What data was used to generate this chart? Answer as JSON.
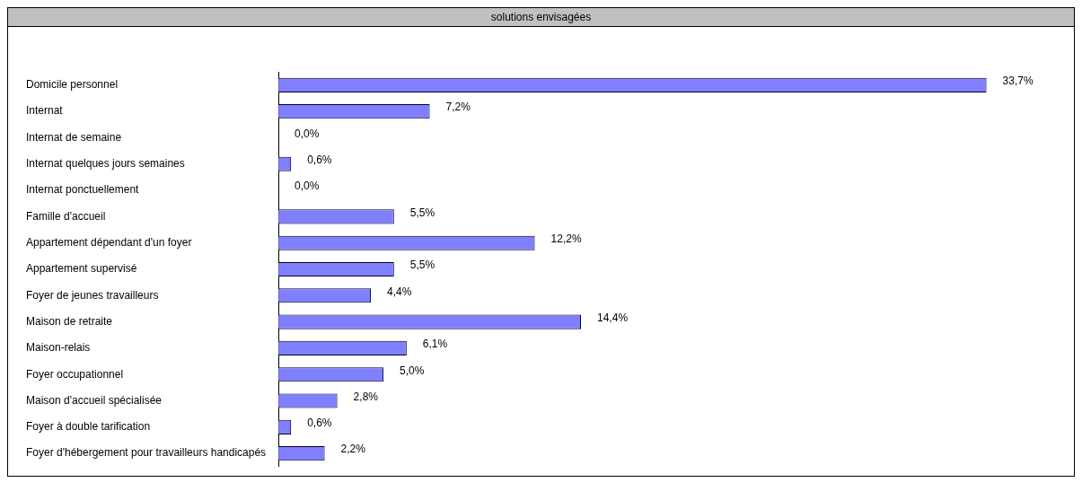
{
  "chart_data": {
    "type": "bar",
    "orientation": "horizontal",
    "title": "solutions envisagées",
    "categories": [
      "Domicile personnel",
      "Internat",
      "Internat de semaine",
      "Internat quelques jours semaines",
      "Internat ponctuellement",
      "Famille d'accueil",
      "Appartement dépendant d'un foyer",
      "Appartement supervisé",
      "Foyer de jeunes travailleurs",
      "Maison de retraite",
      "Maison-relais",
      "Foyer occupationnel",
      "Maison d'accueil spécialisée",
      "Foyer à double tarification",
      "Foyer d'hébergement pour travailleurs handicapés"
    ],
    "values": [
      33.7,
      7.2,
      0.0,
      0.6,
      0.0,
      5.5,
      12.2,
      5.5,
      4.4,
      14.4,
      6.1,
      5.0,
      2.8,
      0.6,
      2.2
    ],
    "value_labels": [
      "33,7%",
      "7,2%",
      "0,0%",
      "0,6%",
      "0,0%",
      "5,5%",
      "12,2%",
      "5,5%",
      "4,4%",
      "14,4%",
      "6,1%",
      "5,0%",
      "2,8%",
      "0,6%",
      "2,2%"
    ],
    "color": "#8080ff",
    "legend": false,
    "tick_labels": "y"
  }
}
